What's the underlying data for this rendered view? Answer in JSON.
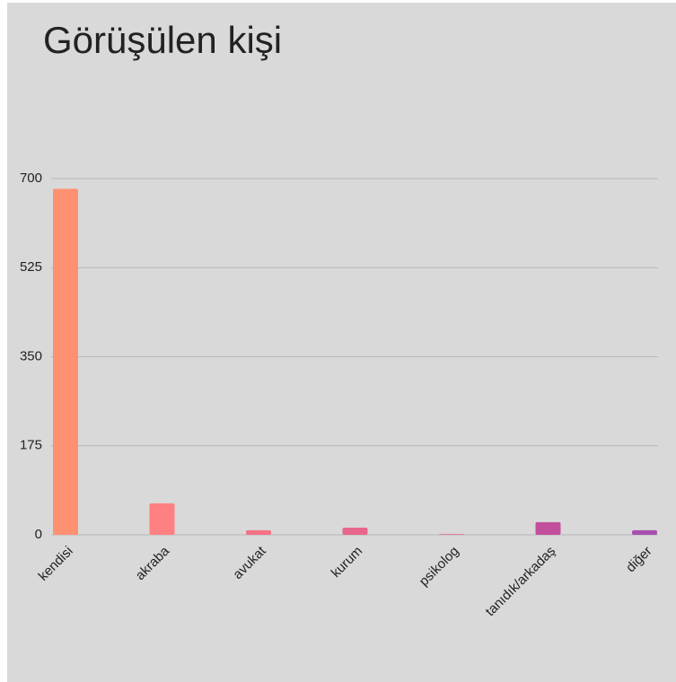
{
  "chart_data": {
    "type": "bar",
    "title": "Görüşülen kişi",
    "categories": [
      "kendisi",
      "akraba",
      "avukat",
      "kurum",
      "psikolog",
      "tanıdık/arkadaş",
      "diğer"
    ],
    "values": [
      680,
      62,
      9,
      14,
      2,
      25,
      9
    ],
    "colors": [
      "#ff9173",
      "#ff8080",
      "#f47184",
      "#e8668c",
      "#dc86aa",
      "#c24f9c",
      "#a64fb0"
    ],
    "ylim": [
      0,
      700
    ],
    "yticks": [
      0,
      175,
      350,
      525,
      700
    ],
    "grid": true
  }
}
